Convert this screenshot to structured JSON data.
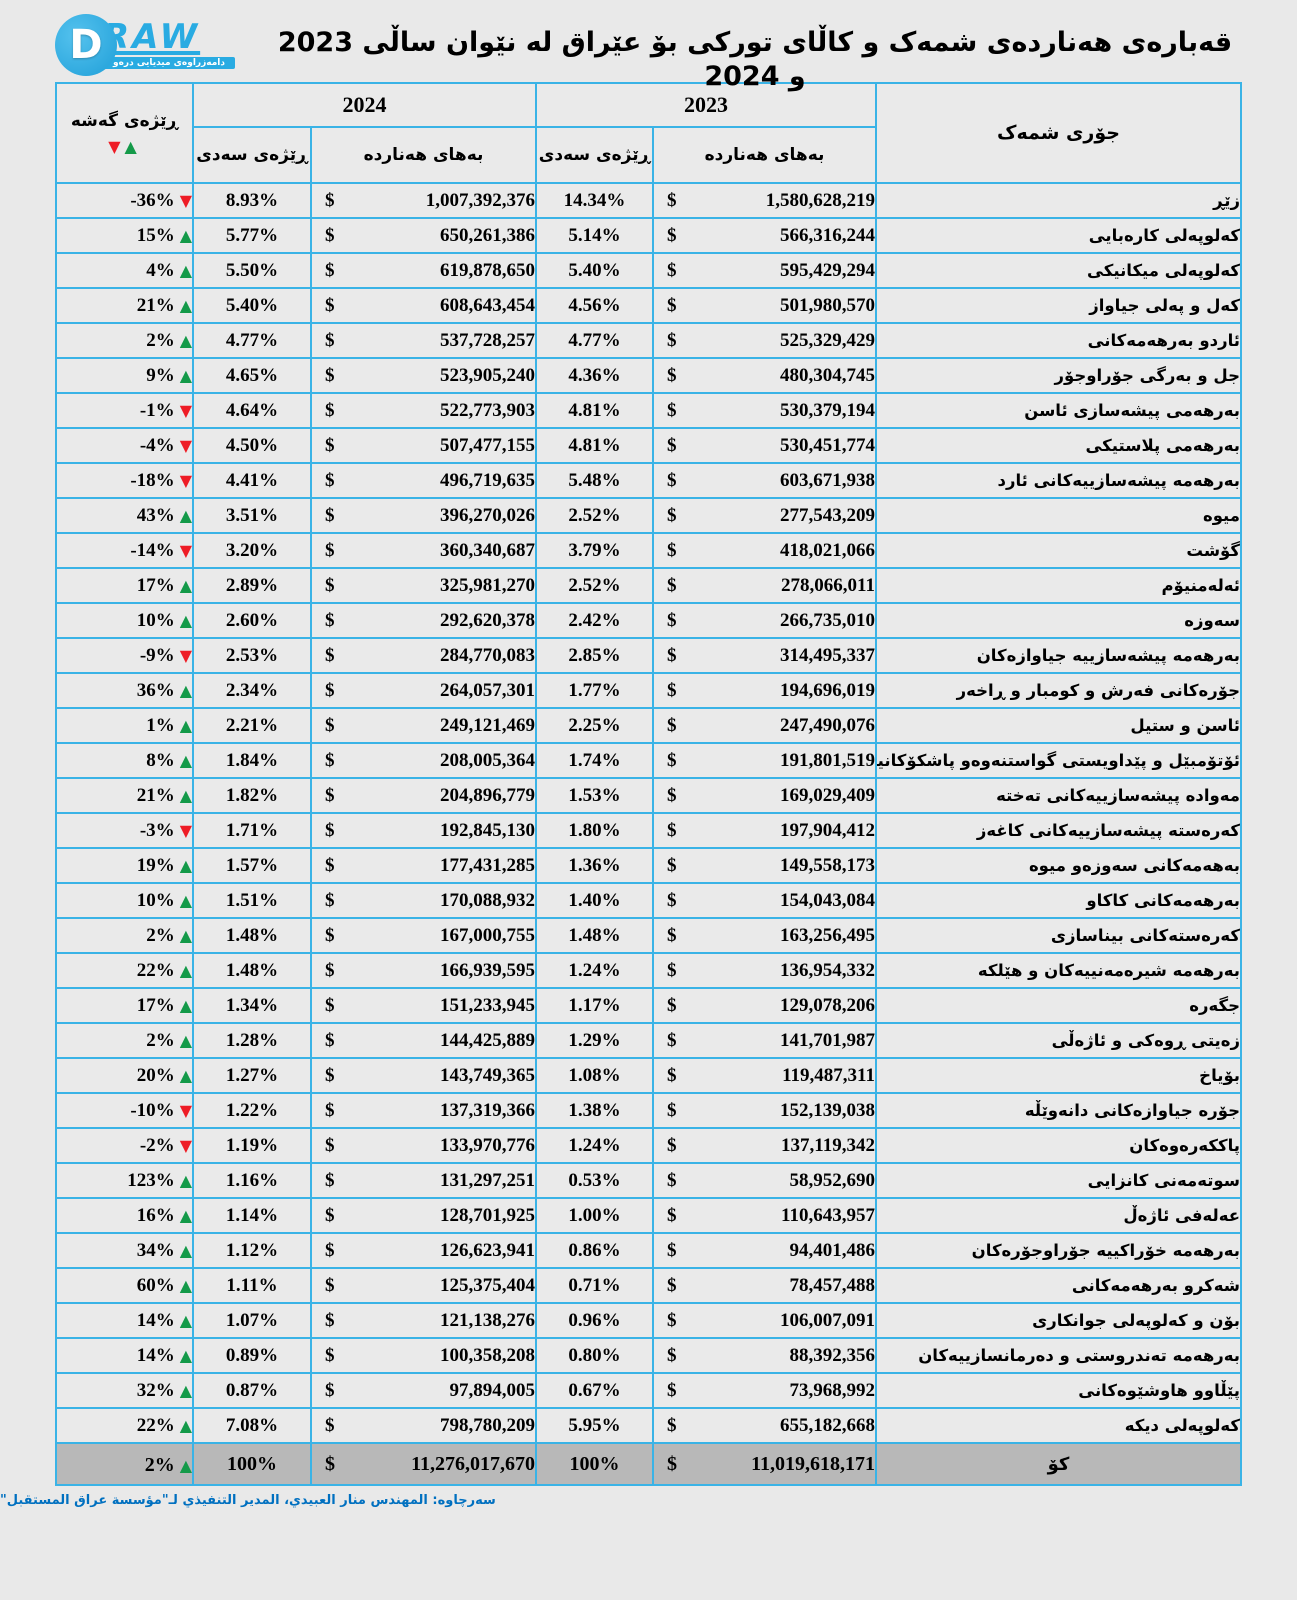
{
  "logo": {
    "brand_d": "D",
    "brand": "RAW",
    "tagline": "دامەزراوەی میدیایی درەو"
  },
  "title": "قەبارەی هەناردەی شمەک و کاڵای تورکی بۆ عێراق لە نێوان ساڵی 2023 و 2024",
  "icons": {
    "up": "▲",
    "down": "▼"
  },
  "colors": {
    "accent_blue": "#29abe2",
    "border_cyan": "#3ab3e6",
    "up_green": "#149a49",
    "down_red": "#ee1c25",
    "total_row_bg": "#b8b8b8",
    "footer_blue": "#0070c0"
  },
  "table": {
    "currency": "$",
    "headers": {
      "growth_label": "ڕێژەی گەشە",
      "year_2024": "2024",
      "year_2023": "2023",
      "pct_label": "ڕێژەی سەدی",
      "value_label": "بەهای هەناردە",
      "commodity_label": "جۆری شمەک"
    },
    "rows": [
      {
        "growth": "-36%",
        "dir": "down",
        "pct_2024": "8.93%",
        "val_2024": "1,007,392,376",
        "pct_2023": "14.34%",
        "val_2023": "1,580,628,219",
        "commodity": "زێڕ"
      },
      {
        "growth": "15%",
        "dir": "up",
        "pct_2024": "5.77%",
        "val_2024": "650,261,386",
        "pct_2023": "5.14%",
        "val_2023": "566,316,244",
        "commodity": "کەلوپەلی کارەبایی"
      },
      {
        "growth": "4%",
        "dir": "up",
        "pct_2024": "5.50%",
        "val_2024": "619,878,650",
        "pct_2023": "5.40%",
        "val_2023": "595,429,294",
        "commodity": "کەلوپەلی میکانیکی"
      },
      {
        "growth": "21%",
        "dir": "up",
        "pct_2024": "5.40%",
        "val_2024": "608,643,454",
        "pct_2023": "4.56%",
        "val_2023": "501,980,570",
        "commodity": "کەل و پەلی جیاواز"
      },
      {
        "growth": "2%",
        "dir": "up",
        "pct_2024": "4.77%",
        "val_2024": "537,728,257",
        "pct_2023": "4.77%",
        "val_2023": "525,329,429",
        "commodity": "ئاردو بەرهەمەکانی"
      },
      {
        "growth": "9%",
        "dir": "up",
        "pct_2024": "4.65%",
        "val_2024": "523,905,240",
        "pct_2023": "4.36%",
        "val_2023": "480,304,745",
        "commodity": "جل و بەرگی جۆراوجۆر"
      },
      {
        "growth": "-1%",
        "dir": "down",
        "pct_2024": "4.64%",
        "val_2024": "522,773,903",
        "pct_2023": "4.81%",
        "val_2023": "530,379,194",
        "commodity": "بەرهەمی پیشەسازی ئاسن"
      },
      {
        "growth": "-4%",
        "dir": "down",
        "pct_2024": "4.50%",
        "val_2024": "507,477,155",
        "pct_2023": "4.81%",
        "val_2023": "530,451,774",
        "commodity": "بەرهەمی پلاستیکی"
      },
      {
        "growth": "-18%",
        "dir": "down",
        "pct_2024": "4.41%",
        "val_2024": "496,719,635",
        "pct_2023": "5.48%",
        "val_2023": "603,671,938",
        "commodity": "بەرهەمە پیشەسازییەکانی ئارد"
      },
      {
        "growth": "43%",
        "dir": "up",
        "pct_2024": "3.51%",
        "val_2024": "396,270,026",
        "pct_2023": "2.52%",
        "val_2023": "277,543,209",
        "commodity": "میوە"
      },
      {
        "growth": "-14%",
        "dir": "down",
        "pct_2024": "3.20%",
        "val_2024": "360,340,687",
        "pct_2023": "3.79%",
        "val_2023": "418,021,066",
        "commodity": "گۆشت"
      },
      {
        "growth": "17%",
        "dir": "up",
        "pct_2024": "2.89%",
        "val_2024": "325,981,270",
        "pct_2023": "2.52%",
        "val_2023": "278,066,011",
        "commodity": "ئەلەمنیۆم"
      },
      {
        "growth": "10%",
        "dir": "up",
        "pct_2024": "2.60%",
        "val_2024": "292,620,378",
        "pct_2023": "2.42%",
        "val_2023": "266,735,010",
        "commodity": "سەوزە"
      },
      {
        "growth": "-9%",
        "dir": "down",
        "pct_2024": "2.53%",
        "val_2024": "284,770,083",
        "pct_2023": "2.85%",
        "val_2023": "314,495,337",
        "commodity": "بەرهەمە پیشەسازییە جیاوازەکان"
      },
      {
        "growth": "36%",
        "dir": "up",
        "pct_2024": "2.34%",
        "val_2024": "264,057,301",
        "pct_2023": "1.77%",
        "val_2023": "194,696,019",
        "commodity": "جۆرەکانی فەرش و کومبار و ڕاخەر"
      },
      {
        "growth": "1%",
        "dir": "up",
        "pct_2024": "2.21%",
        "val_2024": "249,121,469",
        "pct_2023": "2.25%",
        "val_2023": "247,490,076",
        "commodity": "ئاسن و ستیل"
      },
      {
        "growth": "8%",
        "dir": "up",
        "pct_2024": "1.84%",
        "val_2024": "208,005,364",
        "pct_2023": "1.74%",
        "val_2023": "191,801,519",
        "commodity": "ئۆتۆمبێل و پێداویستی گواستنەوەو پاشکۆکانیان"
      },
      {
        "growth": "21%",
        "dir": "up",
        "pct_2024": "1.82%",
        "val_2024": "204,896,779",
        "pct_2023": "1.53%",
        "val_2023": "169,029,409",
        "commodity": "مەوادە پیشەسازییەکانی تەختە"
      },
      {
        "growth": "-3%",
        "dir": "down",
        "pct_2024": "1.71%",
        "val_2024": "192,845,130",
        "pct_2023": "1.80%",
        "val_2023": "197,904,412",
        "commodity": "کەرەستە پیشەسازییەکانی کاغەز"
      },
      {
        "growth": "19%",
        "dir": "up",
        "pct_2024": "1.57%",
        "val_2024": "177,431,285",
        "pct_2023": "1.36%",
        "val_2023": "149,558,173",
        "commodity": "بەهەمەکانی سەوزەو میوە"
      },
      {
        "growth": "10%",
        "dir": "up",
        "pct_2024": "1.51%",
        "val_2024": "170,088,932",
        "pct_2023": "1.40%",
        "val_2023": "154,043,084",
        "commodity": "بەرهەمەکانی کاکاو"
      },
      {
        "growth": "2%",
        "dir": "up",
        "pct_2024": "1.48%",
        "val_2024": "167,000,755",
        "pct_2023": "1.48%",
        "val_2023": "163,256,495",
        "commodity": "کەرەستەکانی بیناسازی"
      },
      {
        "growth": "22%",
        "dir": "up",
        "pct_2024": "1.48%",
        "val_2024": "166,939,595",
        "pct_2023": "1.24%",
        "val_2023": "136,954,332",
        "commodity": "بەرهەمە شیرەمەنییەکان و هێلکە"
      },
      {
        "growth": "17%",
        "dir": "up",
        "pct_2024": "1.34%",
        "val_2024": "151,233,945",
        "pct_2023": "1.17%",
        "val_2023": "129,078,206",
        "commodity": "جگەرە"
      },
      {
        "growth": "2%",
        "dir": "up",
        "pct_2024": "1.28%",
        "val_2024": "144,425,889",
        "pct_2023": "1.29%",
        "val_2023": "141,701,987",
        "commodity": "زەیتی ڕوەکی و ئاژەڵی"
      },
      {
        "growth": "20%",
        "dir": "up",
        "pct_2024": "1.27%",
        "val_2024": "143,749,365",
        "pct_2023": "1.08%",
        "val_2023": "119,487,311",
        "commodity": "بۆیاخ"
      },
      {
        "growth": "-10%",
        "dir": "down",
        "pct_2024": "1.22%",
        "val_2024": "137,319,366",
        "pct_2023": "1.38%",
        "val_2023": "152,139,038",
        "commodity": "جۆرە جیاوازەکانی دانەوێڵە"
      },
      {
        "growth": "-2%",
        "dir": "down",
        "pct_2024": "1.19%",
        "val_2024": "133,970,776",
        "pct_2023": "1.24%",
        "val_2023": "137,119,342",
        "commodity": "پاککەرەوەکان"
      },
      {
        "growth": "123%",
        "dir": "up",
        "pct_2024": "1.16%",
        "val_2024": "131,297,251",
        "pct_2023": "0.53%",
        "val_2023": "58,952,690",
        "commodity": "سوتەمەنی کانزایی"
      },
      {
        "growth": "16%",
        "dir": "up",
        "pct_2024": "1.14%",
        "val_2024": "128,701,925",
        "pct_2023": "1.00%",
        "val_2023": "110,643,957",
        "commodity": "عەلەفی ئاژەڵ"
      },
      {
        "growth": "34%",
        "dir": "up",
        "pct_2024": "1.12%",
        "val_2024": "126,623,941",
        "pct_2023": "0.86%",
        "val_2023": "94,401,486",
        "commodity": "بەرهەمە خۆراکییە جۆراوجۆرەکان"
      },
      {
        "growth": "60%",
        "dir": "up",
        "pct_2024": "1.11%",
        "val_2024": "125,375,404",
        "pct_2023": "0.71%",
        "val_2023": "78,457,488",
        "commodity": "شەکرو بەرهەمەکانی"
      },
      {
        "growth": "14%",
        "dir": "up",
        "pct_2024": "1.07%",
        "val_2024": "121,138,276",
        "pct_2023": "0.96%",
        "val_2023": "106,007,091",
        "commodity": "بۆن و کەلوپەلی جوانکاری"
      },
      {
        "growth": "14%",
        "dir": "up",
        "pct_2024": "0.89%",
        "val_2024": "100,358,208",
        "pct_2023": "0.80%",
        "val_2023": "88,392,356",
        "commodity": "بەرهەمە تەندروستی و دەرمانسازییەکان"
      },
      {
        "growth": "32%",
        "dir": "up",
        "pct_2024": "0.87%",
        "val_2024": "97,894,005",
        "pct_2023": "0.67%",
        "val_2023": "73,968,992",
        "commodity": "پێڵاوو هاوشێوەکانی"
      },
      {
        "growth": "22%",
        "dir": "up",
        "pct_2024": "7.08%",
        "val_2024": "798,780,209",
        "pct_2023": "5.95%",
        "val_2023": "655,182,668",
        "commodity": "کەلوپەلی دیکە"
      }
    ],
    "total": {
      "growth": "2%",
      "dir": "up",
      "pct_2024": "100%",
      "val_2024": "11,276,017,670",
      "pct_2023": "100%",
      "val_2023": "11,019,618,171",
      "commodity": "کۆ"
    }
  },
  "footer": {
    "source": "سەرچاوە: المهندس منار العبيدي، المدير التنفيذي لـ\"مؤسسة عراق المستقبل\""
  }
}
